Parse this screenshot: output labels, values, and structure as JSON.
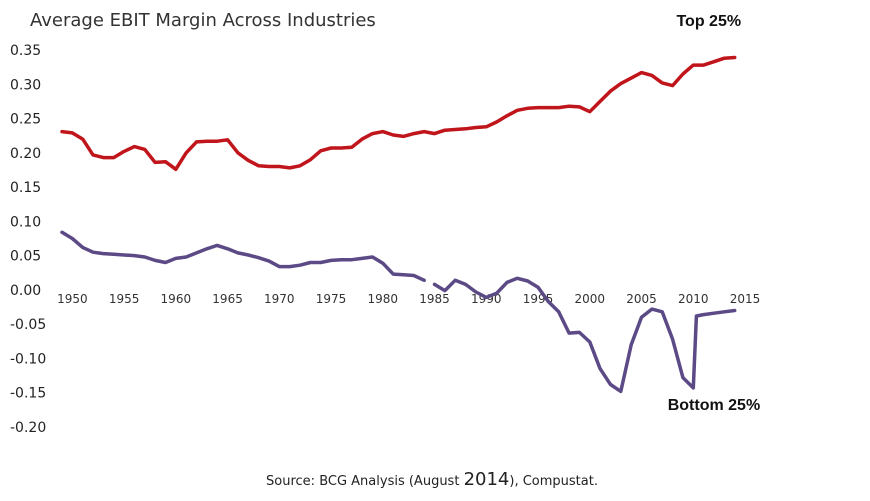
{
  "chart_data": {
    "type": "line",
    "title": "Average EBIT Margin Across Industries",
    "source_prefix": "Source: BCG Analysis (August ",
    "source_year": "2014",
    "source_suffix": "), Compustat.",
    "ylim": [
      -0.2,
      0.35
    ],
    "xlim": [
      1949,
      2015
    ],
    "y_ticks": [
      "0.35",
      "0.30",
      "0.25",
      "0.20",
      "0.15",
      "0.10",
      "0.05",
      "0.00",
      "-0.05",
      "-0.10",
      "-0.15",
      "-0.20"
    ],
    "x_ticks": [
      "1950",
      "1955",
      "1960",
      "1965",
      "1970",
      "1975",
      "1980",
      "1985",
      "1990",
      "1995",
      "2000",
      "2005",
      "2010",
      "2015"
    ],
    "grid": false,
    "legend": "none",
    "series": [
      {
        "name": "Top 25%",
        "color": "#c0151b",
        "points": [
          [
            1949,
            0.231
          ],
          [
            1950,
            0.229
          ],
          [
            1951,
            0.22
          ],
          [
            1952,
            0.197
          ],
          [
            1953,
            0.193
          ],
          [
            1954,
            0.193
          ],
          [
            1955,
            0.202
          ],
          [
            1956,
            0.209
          ],
          [
            1957,
            0.205
          ],
          [
            1958,
            0.186
          ],
          [
            1959,
            0.187
          ],
          [
            1960,
            0.176
          ],
          [
            1961,
            0.2
          ],
          [
            1962,
            0.216
          ],
          [
            1963,
            0.217
          ],
          [
            1964,
            0.217
          ],
          [
            1965,
            0.219
          ],
          [
            1966,
            0.2
          ],
          [
            1967,
            0.189
          ],
          [
            1968,
            0.181
          ],
          [
            1969,
            0.18
          ],
          [
            1970,
            0.18
          ],
          [
            1971,
            0.178
          ],
          [
            1972,
            0.181
          ],
          [
            1973,
            0.19
          ],
          [
            1974,
            0.203
          ],
          [
            1975,
            0.207
          ],
          [
            1976,
            0.207
          ],
          [
            1977,
            0.208
          ],
          [
            1978,
            0.22
          ],
          [
            1979,
            0.228
          ],
          [
            1980,
            0.231
          ],
          [
            1981,
            0.226
          ],
          [
            1982,
            0.224
          ],
          [
            1983,
            0.228
          ],
          [
            1984,
            0.231
          ],
          [
            1985,
            0.228
          ],
          [
            1986,
            0.233
          ],
          [
            1987,
            0.234
          ],
          [
            1988,
            0.235
          ],
          [
            1989,
            0.237
          ],
          [
            1990,
            0.238
          ],
          [
            1991,
            0.245
          ],
          [
            1992,
            0.254
          ],
          [
            1993,
            0.262
          ],
          [
            1994,
            0.265
          ],
          [
            1995,
            0.266
          ],
          [
            1996,
            0.266
          ],
          [
            1997,
            0.266
          ],
          [
            1998,
            0.268
          ],
          [
            1999,
            0.267
          ],
          [
            2000,
            0.26
          ],
          [
            2001,
            0.275
          ],
          [
            2002,
            0.29
          ],
          [
            2003,
            0.301
          ],
          [
            2004,
            0.309
          ],
          [
            2005,
            0.317
          ],
          [
            2006,
            0.313
          ],
          [
            2007,
            0.302
          ],
          [
            2008,
            0.298
          ],
          [
            2009,
            0.315
          ],
          [
            2010,
            0.328
          ],
          [
            2011,
            0.328
          ],
          [
            2012,
            0.333
          ],
          [
            2013,
            0.338
          ],
          [
            2014,
            0.339
          ]
        ]
      },
      {
        "name": "Bottom 25%",
        "color": "#5b4a85",
        "points": [
          [
            1949,
            0.084
          ],
          [
            1950,
            0.075
          ],
          [
            1951,
            0.062
          ],
          [
            1952,
            0.055
          ],
          [
            1953,
            0.053
          ],
          [
            1954,
            0.052
          ],
          [
            1955,
            0.051
          ],
          [
            1956,
            0.05
          ],
          [
            1957,
            0.048
          ],
          [
            1958,
            0.043
          ],
          [
            1959,
            0.04
          ],
          [
            1960,
            0.046
          ],
          [
            1961,
            0.048
          ],
          [
            1962,
            0.054
          ],
          [
            1963,
            0.06
          ],
          [
            1964,
            0.065
          ],
          [
            1965,
            0.06
          ],
          [
            1966,
            0.054
          ],
          [
            1967,
            0.051
          ],
          [
            1968,
            0.047
          ],
          [
            1969,
            0.042
          ],
          [
            1970,
            0.034
          ],
          [
            1971,
            0.034
          ],
          [
            1972,
            0.036
          ],
          [
            1973,
            0.04
          ],
          [
            1974,
            0.04
          ],
          [
            1975,
            0.043
          ],
          [
            1976,
            0.044
          ],
          [
            1977,
            0.044
          ],
          [
            1978,
            0.046
          ],
          [
            1979,
            0.048
          ],
          [
            1980,
            0.039
          ],
          [
            1981,
            0.023
          ],
          [
            1982,
            0.022
          ],
          [
            1983,
            0.021
          ],
          [
            1984,
            0.014
          ],
          null,
          [
            1985,
            0.008
          ],
          [
            1986,
            -0.001
          ],
          [
            1987,
            0.014
          ],
          [
            1988,
            0.008
          ],
          [
            1989,
            -0.003
          ],
          [
            1990,
            -0.011
          ],
          [
            1991,
            -0.005
          ],
          [
            1992,
            0.011
          ],
          [
            1993,
            0.017
          ],
          [
            1994,
            0.013
          ],
          [
            1995,
            0.004
          ],
          [
            1996,
            -0.017
          ],
          [
            1997,
            -0.032
          ],
          [
            1998,
            -0.063
          ],
          [
            1999,
            -0.062
          ],
          [
            2000,
            -0.076
          ],
          [
            2001,
            -0.115
          ],
          [
            2002,
            -0.138
          ],
          [
            2003,
            -0.148
          ],
          [
            2004,
            -0.08
          ],
          [
            2005,
            -0.04
          ],
          [
            2006,
            -0.028
          ],
          [
            2007,
            -0.032
          ],
          [
            2008,
            -0.072
          ],
          [
            2009,
            -0.128
          ],
          [
            2010,
            -0.143
          ],
          [
            2010.3,
            -0.038
          ],
          [
            2011,
            -0.036
          ],
          [
            2012,
            -0.034
          ],
          [
            2013,
            -0.032
          ],
          [
            2014,
            -0.03
          ]
        ]
      }
    ],
    "annotations": [
      {
        "text": "Top 25%",
        "x": 2011.5,
        "y": 0.385
      },
      {
        "text": "Bottom 25%",
        "x": 2012,
        "y": -0.175
      }
    ]
  }
}
